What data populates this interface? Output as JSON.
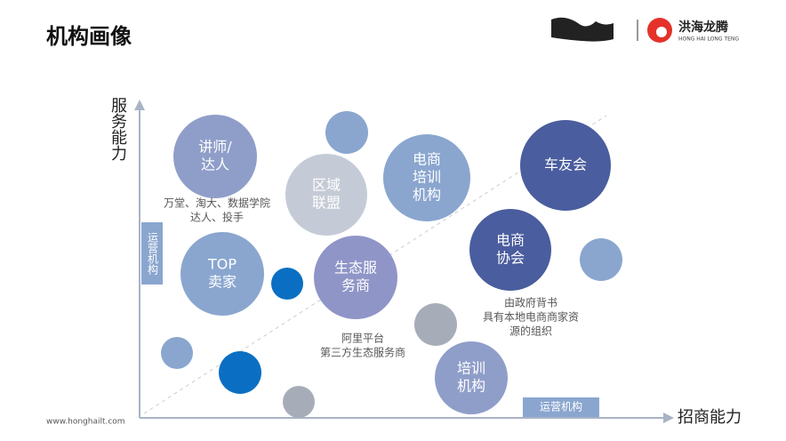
{
  "header": {
    "title": "机构画像",
    "logo_name": "洪海龙腾",
    "logo_sub": "HONG HAI LONG TENG"
  },
  "axes": {
    "y_label": "服务能力",
    "x_label": "招商能力",
    "y_tag": "运营机构",
    "x_tag": "运营机构"
  },
  "bubbles": [
    {
      "lines": [
        "讲师/",
        "达人"
      ]
    },
    {
      "lines": [
        "区域",
        "联盟"
      ]
    },
    {
      "lines": [
        "电商",
        "培训",
        "机构"
      ]
    },
    {
      "lines": [
        "车友会"
      ]
    },
    {
      "lines": [
        "电商",
        "协会"
      ]
    },
    {
      "lines": [
        "TOP",
        "卖家"
      ]
    },
    {
      "lines": [
        "生态服",
        "务商"
      ]
    },
    {
      "lines": [
        "培训",
        "机构"
      ]
    }
  ],
  "annotations": [
    {
      "lines": [
        "万堂、淘大、数据学院",
        "达人、投手"
      ]
    },
    {
      "lines": [
        "阿里平台",
        "第三方生态服务商"
      ]
    },
    {
      "lines": [
        "由政府背书",
        "具有本地电商商家资",
        "源的组织"
      ]
    }
  ],
  "footer": {
    "website": "www.honghailt.com"
  }
}
